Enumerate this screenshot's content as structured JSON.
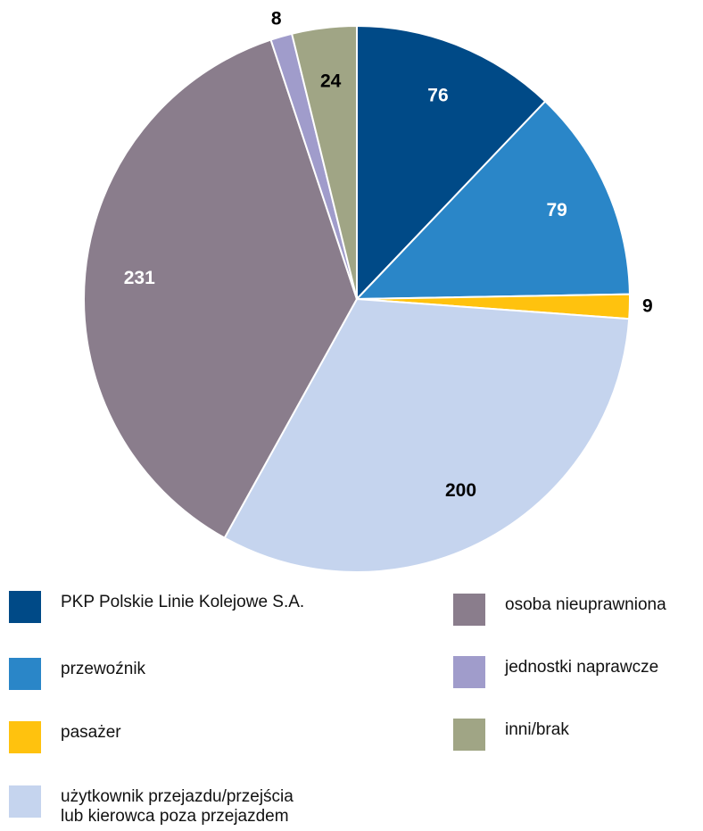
{
  "chart_data": {
    "type": "pie",
    "series": [
      {
        "name": "PKP Polskie Linie Kolejowe S.A.",
        "color": "#004a87",
        "values": [
          76
        ]
      },
      {
        "name": "przewoźnik",
        "color": "#2a86c8",
        "values": [
          79
        ]
      },
      {
        "name": "pasażer",
        "color": "#ffc20e",
        "values": [
          9
        ]
      },
      {
        "name": "użytkownik przejazdu/przejścia\nlub kierowca poza przejazdem",
        "color": "#c5d4ee",
        "values": [
          200
        ]
      },
      {
        "name": "osoba nieuprawniona",
        "color": "#8a7d8c",
        "values": [
          231
        ]
      },
      {
        "name": "jednostki naprawcze",
        "color": "#a09ccb",
        "values": [
          8
        ]
      },
      {
        "name": "inni/brak",
        "color": "#a0a585",
        "values": [
          24
        ]
      }
    ]
  }
}
